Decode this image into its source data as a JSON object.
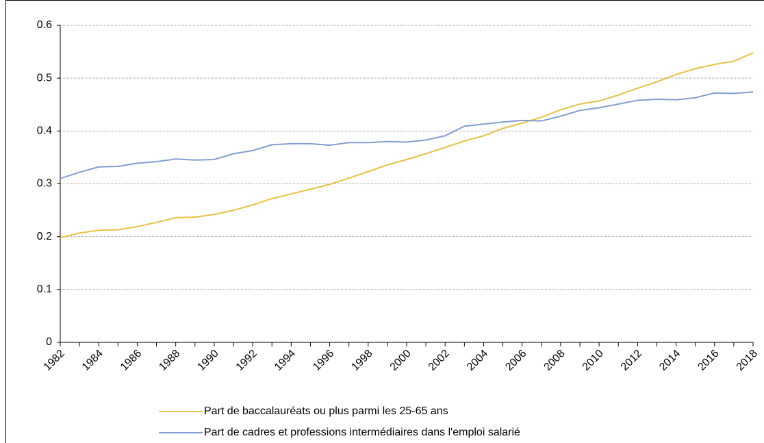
{
  "chart_data": {
    "type": "line",
    "x": [
      1982,
      1983,
      1984,
      1985,
      1986,
      1987,
      1988,
      1989,
      1990,
      1991,
      1992,
      1993,
      1994,
      1995,
      1996,
      1997,
      1998,
      1999,
      2000,
      2001,
      2002,
      2003,
      2004,
      2005,
      2006,
      2007,
      2008,
      2009,
      2010,
      2011,
      2012,
      2013,
      2014,
      2015,
      2016,
      2017,
      2018
    ],
    "series": [
      {
        "name": "Part de baccalauréats ou plus parmi les 25-65 ans",
        "color": "#e8c042",
        "values": [
          0.198,
          0.207,
          0.212,
          0.213,
          0.219,
          0.227,
          0.236,
          0.237,
          0.242,
          0.25,
          0.26,
          0.272,
          0.281,
          0.29,
          0.299,
          0.311,
          0.323,
          0.336,
          0.346,
          0.357,
          0.369,
          0.381,
          0.391,
          0.405,
          0.415,
          0.426,
          0.44,
          0.451,
          0.457,
          0.468,
          0.481,
          0.493,
          0.507,
          0.518,
          0.526,
          0.532,
          0.548
        ]
      },
      {
        "name": "Part de cadres et professions intermédiaires dans l'emploi salarié",
        "color": "#809ed2",
        "values": [
          0.31,
          0.322,
          0.332,
          0.333,
          0.339,
          0.342,
          0.347,
          0.345,
          0.346,
          0.357,
          0.363,
          0.374,
          0.376,
          0.376,
          0.373,
          0.378,
          0.378,
          0.38,
          0.379,
          0.383,
          0.391,
          0.409,
          0.413,
          0.417,
          0.42,
          0.419,
          0.428,
          0.439,
          0.444,
          0.451,
          0.458,
          0.46,
          0.459,
          0.463,
          0.472,
          0.471,
          0.474
        ]
      }
    ],
    "xlim": [
      1982,
      2018
    ],
    "xticks": [
      1982,
      1984,
      1986,
      1988,
      1990,
      1992,
      1994,
      1996,
      1998,
      2000,
      2002,
      2004,
      2006,
      2008,
      2010,
      2012,
      2014,
      2016,
      2018
    ],
    "ylim": [
      0,
      0.6
    ],
    "yticks": [
      0,
      0.1,
      0.2,
      0.3,
      0.4,
      0.5,
      0.6
    ],
    "grid": true
  }
}
